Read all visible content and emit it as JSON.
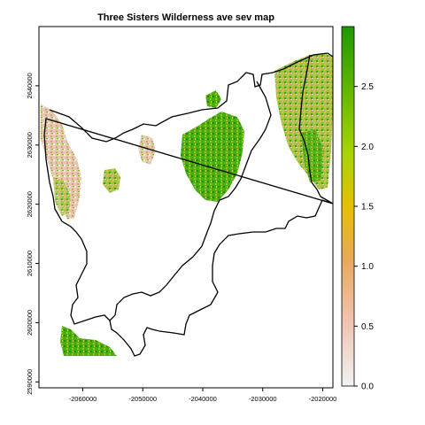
{
  "title": "Three Sisters Wilderness ave sev map",
  "map": {
    "x_ticks": [
      {
        "value": -2060000,
        "label": "-2060000"
      },
      {
        "value": -2050000,
        "label": "-2050000"
      },
      {
        "value": -2040000,
        "label": "-2040000"
      },
      {
        "value": -2030000,
        "label": "-2030000"
      },
      {
        "value": -2020000,
        "label": "-2020000"
      }
    ],
    "y_ticks": [
      {
        "value": 2590000,
        "label": "2590000"
      },
      {
        "value": 2600000,
        "label": "2600000"
      },
      {
        "value": 2610000,
        "label": "2610000"
      },
      {
        "value": 2620000,
        "label": "2620000"
      },
      {
        "value": 2630000,
        "label": "2630000"
      },
      {
        "value": 2640000,
        "label": "2640000"
      }
    ],
    "xlim": [
      -2067300,
      -2018300
    ],
    "ylim": [
      2589000,
      2650000
    ],
    "boundary_color": "#000000"
  },
  "legend": {
    "range": [
      0,
      3.0
    ],
    "ticks": [
      {
        "value": 0.0,
        "label": "0.0"
      },
      {
        "value": 0.5,
        "label": "0.5"
      },
      {
        "value": 1.0,
        "label": "1.0"
      },
      {
        "value": 1.5,
        "label": "1.5"
      },
      {
        "value": 2.0,
        "label": "2.0"
      },
      {
        "value": 2.5,
        "label": "2.5"
      }
    ],
    "colors": [
      "#f2f2f2",
      "#eebfa3",
      "#e8a85e",
      "#e6c200",
      "#a8d500",
      "#1f9a00"
    ]
  }
}
